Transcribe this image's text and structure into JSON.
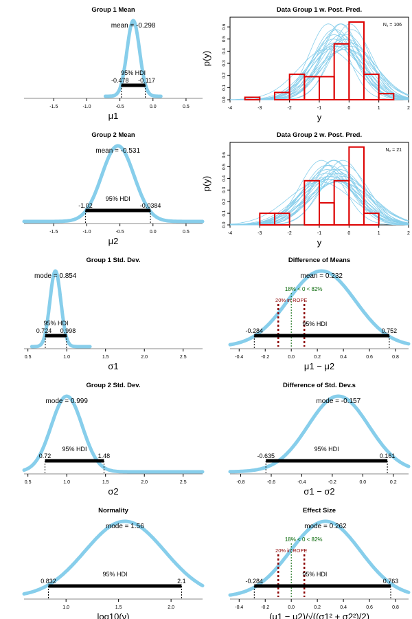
{
  "figure": {
    "columns": 2,
    "rows": 5
  },
  "chart_data": [
    {
      "type": "area",
      "title": "Group 1 Mean",
      "xlabel": "μ1",
      "ylabel": "",
      "xlim": [
        -1.95,
        0.75
      ],
      "ticks": [
        -1.5,
        -1.0,
        -0.5,
        0.0,
        0.5
      ],
      "tick_labels": [
        "-1.5",
        "-1.0",
        "-0.5",
        "0.0",
        "0.5"
      ],
      "density": {
        "center": -0.298,
        "sd": 0.095,
        "lo": -0.72,
        "hi": 0.12
      },
      "central": {
        "kind": "mean",
        "text": "mean = -0.298"
      },
      "hdi": {
        "lower": -0.478,
        "upper": -0.117,
        "label": "95% HDI",
        "lower_text": "-0.478",
        "upper_text": "-0.117"
      },
      "color": "#87CEEB"
    },
    {
      "type": "bar",
      "title": "Data Group 1 w. Post. Pred.",
      "xlabel": "y",
      "ylabel": "p(y)",
      "xlim": [
        -4,
        2
      ],
      "ylim": [
        0,
        0.68
      ],
      "xticks": [
        -4,
        -3,
        -2,
        -1,
        0,
        1,
        2
      ],
      "xtick_labels": [
        "-4",
        "-3",
        "-2",
        "-1",
        "0",
        "1",
        "2"
      ],
      "yticks": [
        0,
        0.1,
        0.2,
        0.3,
        0.4,
        0.5,
        0.6
      ],
      "ytick_labels": [
        "0.0",
        "0.1",
        "0.2",
        "0.3",
        "0.4",
        "0.5",
        "0.6"
      ],
      "bin_edges": [
        -4.0,
        -3.5,
        -3.0,
        -2.5,
        -2.0,
        -1.5,
        -1.0,
        -0.5,
        0.0,
        0.5,
        1.0,
        1.5,
        2.0
      ],
      "values": [
        0.0,
        0.02,
        0.0,
        0.06,
        0.21,
        0.19,
        0.19,
        0.46,
        0.64,
        0.21,
        0.05,
        0.0
      ],
      "pred_curve": {
        "mean": -0.298,
        "sd": 0.8,
        "count": 22
      },
      "n_label": "N₁ = 106",
      "color": "#DD0000",
      "curve_color": "#87CEEB"
    },
    {
      "type": "area",
      "title": "Group 2 Mean",
      "xlabel": "μ2",
      "ylabel": "",
      "xlim": [
        -1.95,
        0.75
      ],
      "ticks": [
        -1.5,
        -1.0,
        -0.5,
        0.0,
        0.5
      ],
      "tick_labels": [
        "-1.5",
        "-1.0",
        "-0.5",
        "0.0",
        "0.5"
      ],
      "density": {
        "center": -0.531,
        "sd": 0.245,
        "lo": -1.95,
        "hi": 0.75
      },
      "central": {
        "kind": "mean",
        "text": "mean = -0.531"
      },
      "hdi": {
        "lower": -1.02,
        "upper": -0.0384,
        "label": "95% HDI",
        "lower_text": "-1.02",
        "upper_text": "-0.0384"
      },
      "color": "#87CEEB"
    },
    {
      "type": "bar",
      "title": "Data Group 2 w. Post. Pred.",
      "xlabel": "y",
      "ylabel": "p(y)",
      "xlim": [
        -4,
        2
      ],
      "ylim": [
        0,
        0.71
      ],
      "xticks": [
        -4,
        -3,
        -2,
        -1,
        0,
        1,
        2
      ],
      "xtick_labels": [
        "-4",
        "-3",
        "-2",
        "-1",
        "0",
        "1",
        "2"
      ],
      "yticks": [
        0,
        0.1,
        0.2,
        0.3,
        0.4,
        0.5,
        0.6
      ],
      "ytick_labels": [
        "0.0",
        "0.1",
        "0.2",
        "0.3",
        "0.4",
        "0.5",
        "0.6"
      ],
      "bin_edges": [
        -4.0,
        -3.5,
        -3.0,
        -2.5,
        -2.0,
        -1.5,
        -1.0,
        -0.5,
        0.0,
        0.5,
        1.0,
        1.5,
        2.0
      ],
      "values": [
        0.0,
        0.0,
        0.1,
        0.1,
        0.0,
        0.38,
        0.19,
        0.38,
        0.67,
        0.1,
        0.0,
        0.0
      ],
      "pred_curve": {
        "mean": -0.531,
        "sd": 0.9,
        "count": 22
      },
      "n_label": "N₂ = 21",
      "color": "#DD0000",
      "curve_color": "#87CEEB"
    },
    {
      "type": "area",
      "title": "Group 1 Std. Dev.",
      "xlabel": "σ1",
      "ylabel": "",
      "xlim": [
        0.45,
        2.75
      ],
      "ticks": [
        0.5,
        1.0,
        1.5,
        2.0,
        2.5
      ],
      "tick_labels": [
        "0.5",
        "1.0",
        "1.5",
        "2.0",
        "2.5"
      ],
      "density": {
        "center": 0.854,
        "sd": 0.07,
        "lo": 0.55,
        "hi": 1.3
      },
      "central": {
        "kind": "mode",
        "text": "mode = 0.854"
      },
      "hdi": {
        "lower": 0.724,
        "upper": 0.998,
        "label": "95% HDI",
        "lower_text": "0.724",
        "upper_text": "0.998"
      },
      "color": "#87CEEB"
    },
    {
      "type": "area",
      "title": "Difference of Means",
      "xlabel": "μ1 − μ2",
      "ylabel": "",
      "xlim": [
        -0.47,
        0.9
      ],
      "ticks": [
        -0.4,
        -0.2,
        0.0,
        0.2,
        0.4,
        0.6,
        0.8
      ],
      "tick_labels": [
        "-0.4",
        "-0.2",
        "0.0",
        "0.2",
        "0.4",
        "0.6",
        "0.8"
      ],
      "density": {
        "center": 0.232,
        "sd": 0.26,
        "lo": -0.47,
        "hi": 0.9
      },
      "central": {
        "kind": "mean",
        "text": "mean = 0.232"
      },
      "hdi": {
        "lower": -0.284,
        "upper": 0.752,
        "label": "95% HDI",
        "lower_text": "-0.284",
        "upper_text": "0.752"
      },
      "comp_value": {
        "value": 0.0,
        "text": "18% < 0 < 82%",
        "color": "#006400"
      },
      "rope": {
        "lower": -0.1,
        "upper": 0.1,
        "text": "20% in ROPE",
        "color": "#8B0000"
      },
      "color": "#87CEEB"
    },
    {
      "type": "area",
      "title": "Group 2 Std. Dev.",
      "xlabel": "σ2",
      "ylabel": "",
      "xlim": [
        0.45,
        2.75
      ],
      "ticks": [
        0.5,
        1.0,
        1.5,
        2.0,
        2.5
      ],
      "tick_labels": [
        "0.5",
        "1.0",
        "1.5",
        "2.0",
        "2.5"
      ],
      "density": {
        "center": 1.0,
        "sd": 0.2,
        "lo": 0.45,
        "hi": 2.75
      },
      "central": {
        "kind": "mode",
        "text": "mode = 0.999"
      },
      "hdi": {
        "lower": 0.72,
        "upper": 1.48,
        "label": "95% HDI",
        "lower_text": "0.72",
        "upper_text": "1.48"
      },
      "color": "#87CEEB"
    },
    {
      "type": "area",
      "title": "Difference of Std. Dev.s",
      "xlabel": "σ1 − σ2",
      "ylabel": "",
      "xlim": [
        -0.87,
        0.3
      ],
      "ticks": [
        -0.8,
        -0.6,
        -0.4,
        -0.2,
        0.0,
        0.2
      ],
      "tick_labels": [
        "-0.8",
        "-0.6",
        "-0.4",
        "-0.2",
        "0.0",
        "0.2"
      ],
      "density": {
        "center": -0.16,
        "sd": 0.2,
        "lo": -0.87,
        "hi": 0.3
      },
      "central": {
        "kind": "mode",
        "text": "mode = -0.157"
      },
      "hdi": {
        "lower": -0.635,
        "upper": 0.161,
        "label": "95% HDI",
        "lower_text": "-0.635",
        "upper_text": "0.161"
      },
      "color": "#87CEEB"
    },
    {
      "type": "area",
      "title": "Normality",
      "xlabel": "log10(ν)",
      "ylabel": "",
      "xlim": [
        0.6,
        2.3
      ],
      "ticks": [
        1.0,
        1.5,
        2.0
      ],
      "tick_labels": [
        "1.0",
        "1.5",
        "2.0"
      ],
      "density": {
        "center": 1.56,
        "sd": 0.38,
        "lo": 0.6,
        "hi": 2.3
      },
      "central": {
        "kind": "mode",
        "text": "mode = 1.56"
      },
      "hdi": {
        "lower": 0.832,
        "upper": 2.1,
        "label": "95% HDI",
        "lower_text": "0.832",
        "upper_text": "2.1"
      },
      "color": "#87CEEB"
    },
    {
      "type": "area",
      "title": "Effect Size",
      "xlabel": "(μ1 − μ2)/√((σ1² + σ2²)/2)",
      "ylabel": "",
      "xlim": [
        -0.47,
        0.9
      ],
      "ticks": [
        -0.4,
        -0.2,
        0.0,
        0.2,
        0.4,
        0.6,
        0.8
      ],
      "tick_labels": [
        "-0.4",
        "-0.2",
        "0.0",
        "0.2",
        "0.4",
        "0.6",
        "0.8"
      ],
      "density": {
        "center": 0.262,
        "sd": 0.27,
        "lo": -0.47,
        "hi": 0.9
      },
      "central": {
        "kind": "mode",
        "text": "mode = 0.262"
      },
      "hdi": {
        "lower": -0.284,
        "upper": 0.763,
        "label": "95% HDI",
        "lower_text": "-0.284",
        "upper_text": "0.763"
      },
      "comp_value": {
        "value": 0.0,
        "text": "18% < 0 < 82%",
        "color": "#006400"
      },
      "rope": {
        "lower": -0.1,
        "upper": 0.1,
        "text": "20% in ROPE",
        "color": "#8B0000"
      },
      "color": "#87CEEB"
    }
  ]
}
